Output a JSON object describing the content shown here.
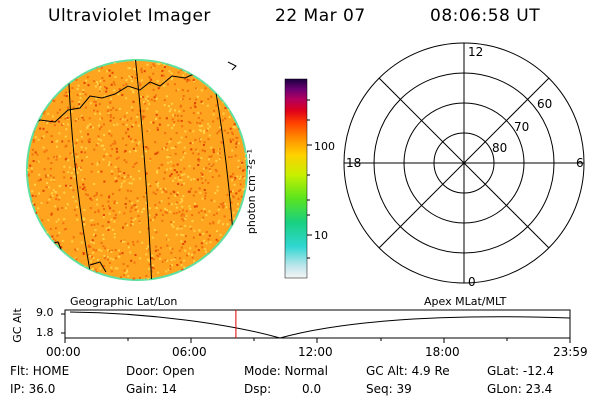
{
  "header": {
    "title": "Ultraviolet Imager",
    "date": "22 Mar 07",
    "time": "08:06:58 UT"
  },
  "colorbar": {
    "unit_label": "photon cm⁻²s⁻¹",
    "tick_labels": [
      "100",
      "10"
    ]
  },
  "polar_plot": {
    "mlt_labels": {
      "top": "12",
      "right": "6",
      "bottom": "0",
      "left": "18"
    },
    "mlat_labels": [
      "60",
      "70",
      "80"
    ]
  },
  "timeline": {
    "left_caption": "Geographic Lat/Lon",
    "right_caption": "Apex MLat/MLT",
    "y_axis_label": "GC Alt",
    "y_tick_labels": [
      "9.0",
      "1.8"
    ],
    "x_tick_labels": [
      "00:00",
      "06:00",
      "12:00",
      "18:00",
      "23:59"
    ],
    "current_time_marker": "08:06:58",
    "marker_color": "#e00000"
  },
  "info": {
    "flt": "Flt: HOME",
    "ip": "IP: 36.0",
    "door": "Door: Open",
    "gain": "Gain: 14",
    "mode": "Mode: Normal",
    "dsp_label": "Dsp:",
    "dsp_value": "0.0",
    "gc_alt": "GC Alt: 4.9 Re",
    "seq": "Seq: 39",
    "glat": "GLat: -12.4",
    "glon": "GLon: 23.4"
  },
  "colors": {
    "image_base": "#ffa41e",
    "image_speckle_dark": "#f07010",
    "image_speckle_light": "#ffd24a",
    "image_rim": "#5fe0a0"
  }
}
